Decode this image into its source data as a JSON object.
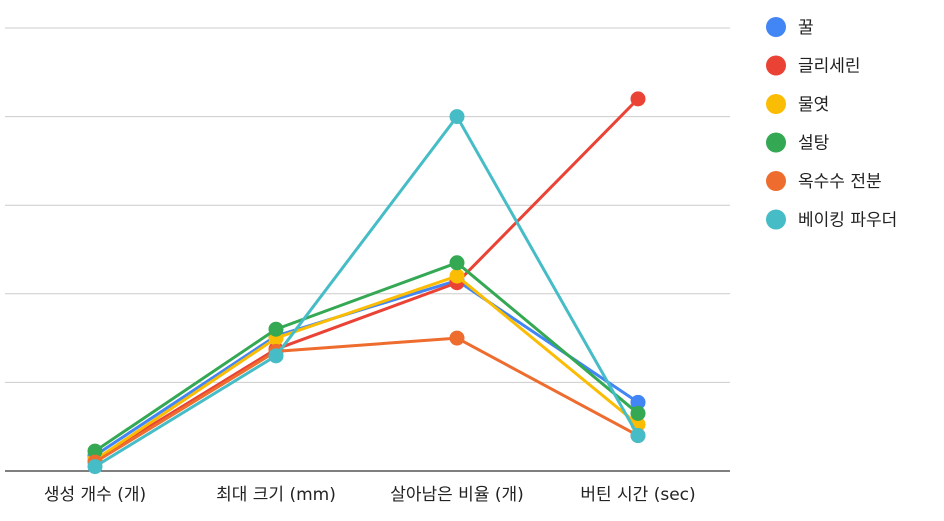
{
  "chart_data": {
    "type": "line",
    "categories": [
      "생성 개수 (개)",
      "최대 크기 (mm)",
      "살아남은 비율 (개)",
      "버틴 시간 (sec)"
    ],
    "ylim": [
      0,
      100
    ],
    "grid": true,
    "y_tick_labels_shown": false,
    "legend_position": "right",
    "series": [
      {
        "name": "꿀",
        "color": "#4285f4",
        "values": [
          3.5,
          30.5,
          43.0,
          15.5
        ]
      },
      {
        "name": "글리세린",
        "color": "#ea4335",
        "values": [
          2.5,
          27.5,
          42.5,
          84.0
        ]
      },
      {
        "name": "물엿",
        "color": "#fbbc04",
        "values": [
          2.5,
          30.0,
          44.0,
          10.5
        ]
      },
      {
        "name": "설탕",
        "color": "#34a853",
        "values": [
          4.5,
          32.0,
          47.0,
          13.0
        ]
      },
      {
        "name": "옥수수 전분",
        "color": "#ed6c2e",
        "values": [
          2.0,
          27.0,
          30.0,
          8.0
        ]
      },
      {
        "name": "베이킹 파우더",
        "color": "#46bdc6",
        "values": [
          1.0,
          26.0,
          80.0,
          8.0
        ]
      }
    ]
  }
}
